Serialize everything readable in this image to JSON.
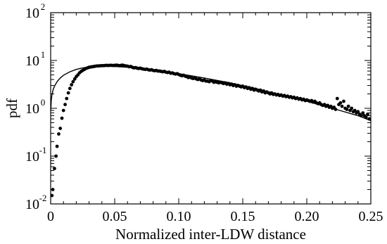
{
  "chart_data": {
    "type": "scatter",
    "xlabel": "Normalized inter-LDW distance",
    "ylabel": "pdf",
    "xlim": [
      0,
      0.25
    ],
    "ylim": [
      0.01,
      100
    ],
    "yscale": "log",
    "grid": false,
    "x_ticks": [
      {
        "value": 0,
        "label": "0"
      },
      {
        "value": 0.05,
        "label": "0.05"
      },
      {
        "value": 0.1,
        "label": "0.10"
      },
      {
        "value": 0.15,
        "label": "0.15"
      },
      {
        "value": 0.2,
        "label": "0.20"
      },
      {
        "value": 0.25,
        "label": "0.25"
      }
    ],
    "y_ticks": [
      {
        "value": 0.01,
        "base": "10",
        "exp": "-2"
      },
      {
        "value": 0.1,
        "base": "10",
        "exp": "-1"
      },
      {
        "value": 1,
        "base": "10",
        "exp": "0"
      },
      {
        "value": 10,
        "base": "10",
        "exp": "1"
      },
      {
        "value": 100,
        "base": "10",
        "exp": "2"
      }
    ],
    "series": [
      {
        "kind": "points",
        "color": "#000000",
        "points": [
          [
            0.001,
            0.015
          ],
          [
            0.0017,
            0.02
          ],
          [
            0.003,
            0.055
          ],
          [
            0.0042,
            0.1
          ],
          [
            0.005,
            0.16
          ],
          [
            0.0063,
            0.29
          ],
          [
            0.0075,
            0.38
          ],
          [
            0.0088,
            0.62
          ],
          [
            0.01,
            0.9
          ],
          [
            0.0113,
            1.2
          ],
          [
            0.0125,
            1.6
          ],
          [
            0.0138,
            2.1
          ],
          [
            0.015,
            2.6
          ],
          [
            0.0163,
            3.1
          ],
          [
            0.0175,
            3.6
          ],
          [
            0.0188,
            4.1
          ],
          [
            0.02,
            4.6
          ],
          [
            0.0213,
            5.0
          ],
          [
            0.0225,
            5.5
          ],
          [
            0.0238,
            5.9
          ],
          [
            0.025,
            6.2
          ],
          [
            0.0263,
            6.5
          ],
          [
            0.0275,
            6.8
          ],
          [
            0.0288,
            7.0
          ],
          [
            0.03,
            7.2
          ],
          [
            0.0313,
            7.3
          ],
          [
            0.0325,
            7.4
          ],
          [
            0.0338,
            7.5
          ],
          [
            0.035,
            7.6
          ],
          [
            0.0363,
            7.7
          ],
          [
            0.0375,
            7.7
          ],
          [
            0.0388,
            7.75
          ],
          [
            0.04,
            7.8
          ],
          [
            0.0413,
            7.8
          ],
          [
            0.0425,
            7.85
          ],
          [
            0.0438,
            7.9
          ],
          [
            0.045,
            7.85
          ],
          [
            0.0463,
            7.9
          ],
          [
            0.0475,
            7.9
          ],
          [
            0.0488,
            7.85
          ],
          [
            0.05,
            7.9
          ],
          [
            0.0513,
            8.0
          ],
          [
            0.0525,
            7.9
          ],
          [
            0.0538,
            7.8
          ],
          [
            0.055,
            7.9
          ],
          [
            0.0563,
            8.0
          ],
          [
            0.0575,
            7.8
          ],
          [
            0.0588,
            7.7
          ],
          [
            0.06,
            7.6
          ],
          [
            0.0613,
            7.4
          ],
          [
            0.0625,
            7.5
          ],
          [
            0.0638,
            7.2
          ],
          [
            0.065,
            7.0
          ],
          [
            0.0663,
            7.1
          ],
          [
            0.0675,
            6.9
          ],
          [
            0.0688,
            6.8
          ],
          [
            0.07,
            6.9
          ],
          [
            0.0713,
            6.7
          ],
          [
            0.0725,
            6.6
          ],
          [
            0.0738,
            6.5
          ],
          [
            0.075,
            6.6
          ],
          [
            0.0763,
            6.4
          ],
          [
            0.0775,
            6.3
          ],
          [
            0.0788,
            6.4
          ],
          [
            0.08,
            6.2
          ],
          [
            0.0813,
            6.1
          ],
          [
            0.0825,
            6.2
          ],
          [
            0.0838,
            6.0
          ],
          [
            0.085,
            6.0
          ],
          [
            0.0863,
            5.9
          ],
          [
            0.0875,
            5.8
          ],
          [
            0.0888,
            5.9
          ],
          [
            0.09,
            5.7
          ],
          [
            0.0913,
            5.6
          ],
          [
            0.0925,
            5.7
          ],
          [
            0.0938,
            5.4
          ],
          [
            0.095,
            5.5
          ],
          [
            0.0963,
            5.3
          ],
          [
            0.0975,
            5.2
          ],
          [
            0.0988,
            5.3
          ],
          [
            0.1,
            5.1
          ],
          [
            0.1013,
            4.9
          ],
          [
            0.1025,
            4.8
          ],
          [
            0.1038,
            4.9
          ],
          [
            0.105,
            4.7
          ],
          [
            0.1063,
            4.6
          ],
          [
            0.1075,
            4.4
          ],
          [
            0.1088,
            4.5
          ],
          [
            0.11,
            4.3
          ],
          [
            0.1113,
            4.2
          ],
          [
            0.1125,
            4.3
          ],
          [
            0.1138,
            4.1
          ],
          [
            0.115,
            4.0
          ],
          [
            0.1163,
            4.1
          ],
          [
            0.1175,
            3.9
          ],
          [
            0.1188,
            3.8
          ],
          [
            0.12,
            3.9
          ],
          [
            0.1213,
            3.7
          ],
          [
            0.1225,
            3.7
          ],
          [
            0.1238,
            3.6
          ],
          [
            0.125,
            3.8
          ],
          [
            0.1263,
            3.7
          ],
          [
            0.1275,
            3.5
          ],
          [
            0.1288,
            3.6
          ],
          [
            0.13,
            3.5
          ],
          [
            0.1313,
            3.4
          ],
          [
            0.1325,
            3.5
          ],
          [
            0.1338,
            3.4
          ],
          [
            0.135,
            3.3
          ],
          [
            0.1363,
            3.4
          ],
          [
            0.1375,
            3.2
          ],
          [
            0.1388,
            3.3
          ],
          [
            0.14,
            3.1
          ],
          [
            0.1413,
            3.2
          ],
          [
            0.1425,
            3.0
          ],
          [
            0.1438,
            3.1
          ],
          [
            0.145,
            2.9
          ],
          [
            0.1463,
            3.0
          ],
          [
            0.1475,
            2.9
          ],
          [
            0.1488,
            2.8
          ],
          [
            0.15,
            2.9
          ],
          [
            0.1513,
            2.7
          ],
          [
            0.1525,
            2.8
          ],
          [
            0.1538,
            2.6
          ],
          [
            0.155,
            2.7
          ],
          [
            0.1563,
            2.5
          ],
          [
            0.1575,
            2.6
          ],
          [
            0.1588,
            2.4
          ],
          [
            0.16,
            2.5
          ],
          [
            0.1613,
            2.4
          ],
          [
            0.1625,
            2.3
          ],
          [
            0.1638,
            2.4
          ],
          [
            0.165,
            2.2
          ],
          [
            0.1663,
            2.3
          ],
          [
            0.1675,
            2.1
          ],
          [
            0.1688,
            2.2
          ],
          [
            0.17,
            2.1
          ],
          [
            0.1713,
            2.0
          ],
          [
            0.1725,
            2.1
          ],
          [
            0.1738,
            1.95
          ],
          [
            0.175,
            2.0
          ],
          [
            0.1763,
            1.9
          ],
          [
            0.1775,
            1.95
          ],
          [
            0.1788,
            1.85
          ],
          [
            0.18,
            1.9
          ],
          [
            0.1813,
            1.8
          ],
          [
            0.1825,
            1.85
          ],
          [
            0.1838,
            1.75
          ],
          [
            0.185,
            1.8
          ],
          [
            0.1863,
            1.7
          ],
          [
            0.1875,
            1.75
          ],
          [
            0.1888,
            1.65
          ],
          [
            0.19,
            1.7
          ],
          [
            0.1913,
            1.6
          ],
          [
            0.1925,
            1.65
          ],
          [
            0.1938,
            1.55
          ],
          [
            0.195,
            1.6
          ],
          [
            0.1963,
            1.5
          ],
          [
            0.1975,
            1.55
          ],
          [
            0.1988,
            1.45
          ],
          [
            0.2,
            1.5
          ],
          [
            0.2013,
            1.45
          ],
          [
            0.2025,
            1.4
          ],
          [
            0.2038,
            1.45
          ],
          [
            0.205,
            1.35
          ],
          [
            0.2063,
            1.4
          ],
          [
            0.2075,
            1.3
          ],
          [
            0.2088,
            1.25
          ],
          [
            0.21,
            1.3
          ],
          [
            0.2113,
            1.2
          ],
          [
            0.2125,
            1.15
          ],
          [
            0.2138,
            1.2
          ],
          [
            0.215,
            1.1
          ],
          [
            0.2163,
            1.15
          ],
          [
            0.2175,
            1.05
          ],
          [
            0.2188,
            1.1
          ],
          [
            0.22,
            1.0
          ],
          [
            0.2213,
            1.05
          ],
          [
            0.2225,
            0.95
          ],
          [
            0.2238,
            1.6
          ],
          [
            0.225,
            1.2
          ],
          [
            0.2263,
            1.3
          ],
          [
            0.2275,
            1.1
          ],
          [
            0.2288,
            1.4
          ],
          [
            0.23,
            1.0
          ],
          [
            0.2313,
            0.95
          ],
          [
            0.2325,
            1.1
          ],
          [
            0.2338,
            0.9
          ],
          [
            0.235,
            1.0
          ],
          [
            0.2363,
            0.85
          ],
          [
            0.2375,
            0.9
          ],
          [
            0.2388,
            0.8
          ],
          [
            0.24,
            0.85
          ],
          [
            0.2413,
            0.75
          ],
          [
            0.2425,
            0.7
          ],
          [
            0.2438,
            0.8
          ],
          [
            0.245,
            0.7
          ],
          [
            0.2463,
            0.65
          ],
          [
            0.2475,
            0.75
          ],
          [
            0.2488,
            0.6
          ]
        ]
      },
      {
        "kind": "line",
        "color": "#000000",
        "points": [
          [
            0.0001,
            0.9
          ],
          [
            0.0005,
            1.5
          ],
          [
            0.001,
            1.9
          ],
          [
            0.002,
            2.5
          ],
          [
            0.003,
            2.9
          ],
          [
            0.005,
            3.6
          ],
          [
            0.0075,
            4.3
          ],
          [
            0.01,
            4.9
          ],
          [
            0.015,
            5.8
          ],
          [
            0.02,
            6.5
          ],
          [
            0.025,
            7.0
          ],
          [
            0.03,
            7.3
          ],
          [
            0.035,
            7.5
          ],
          [
            0.04,
            7.6
          ],
          [
            0.045,
            7.6
          ],
          [
            0.05,
            7.5
          ],
          [
            0.06,
            7.2
          ],
          [
            0.07,
            6.8
          ],
          [
            0.08,
            6.3
          ],
          [
            0.09,
            5.8
          ],
          [
            0.1,
            5.3
          ],
          [
            0.12,
            4.3
          ],
          [
            0.14,
            3.4
          ],
          [
            0.16,
            2.6
          ],
          [
            0.18,
            1.9
          ],
          [
            0.2,
            1.4
          ],
          [
            0.22,
            1.0
          ],
          [
            0.24,
            0.7
          ],
          [
            0.25,
            0.55
          ]
        ]
      }
    ]
  }
}
